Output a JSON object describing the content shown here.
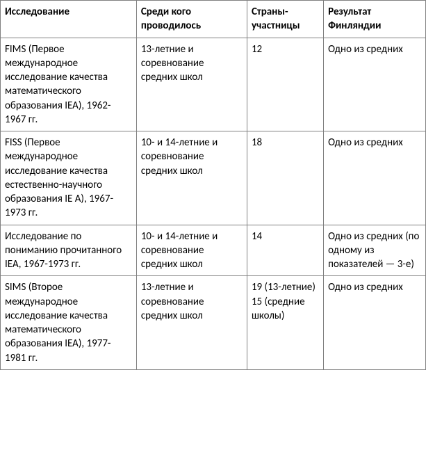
{
  "type": "table",
  "background_color": "#ffffff",
  "border_color": "#808080",
  "text_color": "#000000",
  "font_family": "Calibri, Arial, sans-serif",
  "header_fontweight": "700",
  "cell_fontsize": 15,
  "columns": [
    {
      "label": "Исследование",
      "width_pct": 32
    },
    {
      "label": "Среди кого проводилось",
      "width_pct": 26
    },
    {
      "label": "Страны-участницы",
      "width_pct": 18
    },
    {
      "label": "Результат Финляндии",
      "width_pct": 24
    }
  ],
  "rows": [
    {
      "study": "FIMS (Первое международное исследование качества математического образования IEA), 1962-1967 гг.",
      "among": "13-летние и соревнование средних школ",
      "countries": "12",
      "result": "Одно из средних"
    },
    {
      "study": "FISS (Первое международное исследование качества естественно-научного образования IE A), 1967-1973 гг.",
      "among": "10- и 14-летние и соревнование средних школ",
      "countries": "18",
      "result": "Одно из средних"
    },
    {
      "study": "Исследование по пониманию прочитанного IEA, 1967-1973 гг.",
      "among": "10- и 14-летние и соревнование средних школ",
      "countries": "14",
      "result": "Одно из средних (по одному из показателей — 3-е)"
    },
    {
      "study": "SIMS (Второе международное исследование качества математического образования IEA), 1977-1981 гг.",
      "among": "13-летние и соревнование средних школ",
      "countries": "19 (13-летние) 15 (средние школы)",
      "result": "Одно из средних"
    }
  ]
}
